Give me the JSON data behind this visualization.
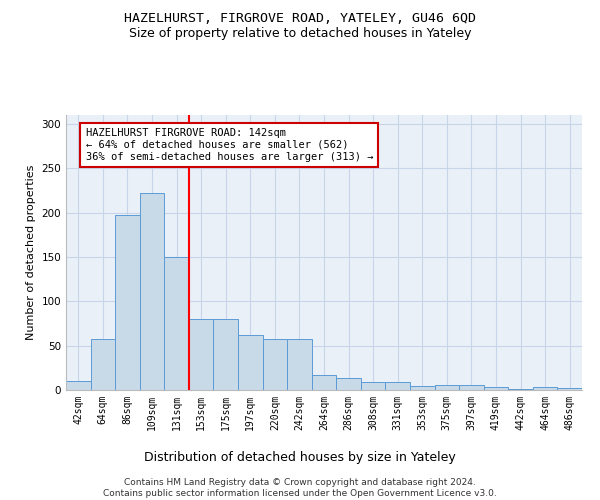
{
  "title1": "HAZELHURST, FIRGROVE ROAD, YATELEY, GU46 6QD",
  "title2": "Size of property relative to detached houses in Yateley",
  "xlabel": "Distribution of detached houses by size in Yateley",
  "ylabel": "Number of detached properties",
  "categories": [
    "42sqm",
    "64sqm",
    "86sqm",
    "109sqm",
    "131sqm",
    "153sqm",
    "175sqm",
    "197sqm",
    "220sqm",
    "242sqm",
    "264sqm",
    "286sqm",
    "308sqm",
    "331sqm",
    "353sqm",
    "375sqm",
    "397sqm",
    "419sqm",
    "442sqm",
    "464sqm",
    "486sqm"
  ],
  "values": [
    10,
    58,
    197,
    222,
    150,
    80,
    80,
    62,
    57,
    57,
    17,
    13,
    9,
    9,
    4,
    6,
    6,
    3,
    1,
    3,
    2
  ],
  "bar_color": "#c8d9e8",
  "bar_edge_color": "#5b9bd5",
  "annotation_text_line1": "HAZELHURST FIRGROVE ROAD: 142sqm",
  "annotation_text_line2": "← 64% of detached houses are smaller (562)",
  "annotation_text_line3": "36% of semi-detached houses are larger (313) →",
  "annotation_box_color": "#ffffff",
  "annotation_box_edge_color": "#cc0000",
  "red_line_x": 4.5,
  "ylim": [
    0,
    310
  ],
  "yticks": [
    0,
    50,
    100,
    150,
    200,
    250,
    300
  ],
  "grid_color": "#c8d4e8",
  "background_color": "#eaf0f8",
  "footer_text": "Contains HM Land Registry data © Crown copyright and database right 2024.\nContains public sector information licensed under the Open Government Licence v3.0.",
  "title1_fontsize": 9.5,
  "title2_fontsize": 9,
  "xlabel_fontsize": 9,
  "ylabel_fontsize": 8,
  "tick_fontsize": 7,
  "annotation_fontsize": 7.5,
  "footer_fontsize": 6.5
}
